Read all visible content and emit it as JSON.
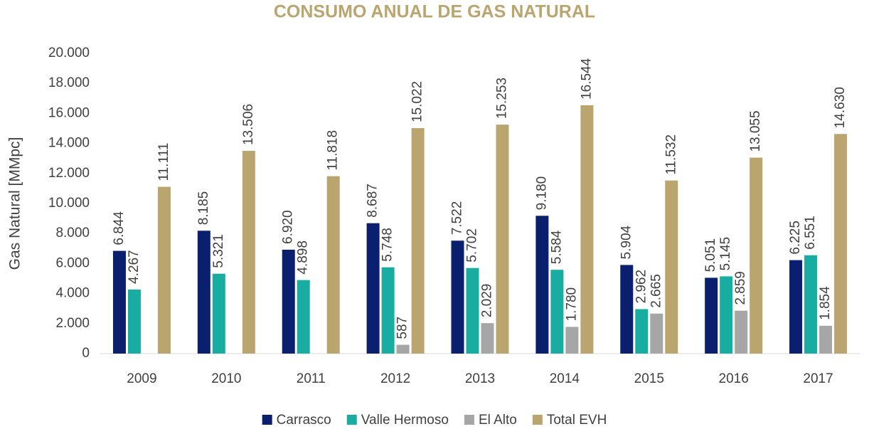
{
  "chart_data": {
    "type": "bar",
    "title": "CONSUMO ANUAL DE GAS NATURAL",
    "y_label": "Gas Natural [MMpc]",
    "categories": [
      "2009",
      "2010",
      "2011",
      "2012",
      "2013",
      "2014",
      "2015",
      "2016",
      "2017"
    ],
    "series": [
      {
        "name": "Carrasco",
        "color": "#0b1f6f",
        "values": [
          6844,
          8185,
          6920,
          8687,
          7522,
          9180,
          5904,
          5051,
          6225
        ],
        "value_labels": [
          "6.844",
          "8.185",
          "6.920",
          "8.687",
          "7.522",
          "9.180",
          "5.904",
          "5.051",
          "6.225"
        ]
      },
      {
        "name": "Valle Hermoso",
        "color": "#19ada1",
        "values": [
          4267,
          5321,
          4898,
          5748,
          5702,
          5584,
          2962,
          5145,
          6551
        ],
        "value_labels": [
          "4.267",
          "5.321",
          "4.898",
          "5.748",
          "5.702",
          "5.584",
          "2.962",
          "5.145",
          "6.551"
        ]
      },
      {
        "name": "El Alto",
        "color": "#a6a6a6",
        "values": [
          null,
          null,
          null,
          587,
          2029,
          1780,
          2665,
          2859,
          1854
        ],
        "value_labels": [
          null,
          null,
          null,
          "587",
          "2.029",
          "1.780",
          "2.665",
          "2.859",
          "1.854"
        ]
      },
      {
        "name": "Total EVH",
        "color": "#b9a56d",
        "values": [
          11111,
          13506,
          11818,
          15022,
          15253,
          16544,
          11532,
          13055,
          14630
        ],
        "value_labels": [
          "11.111",
          "13.506",
          "11.818",
          "15.022",
          "15.253",
          "16.544",
          "11.532",
          "13.055",
          "14.630"
        ]
      }
    ],
    "ylim": [
      0,
      20000
    ],
    "yticks": [
      0,
      {
        "value": 2000,
        "label": "2.000"
      },
      {
        "value": 4000,
        "label": "4.000"
      },
      {
        "value": 6000,
        "label": "6.000"
      },
      {
        "value": 8000,
        "label": "8.000"
      },
      {
        "value": 10000,
        "label": "10.000"
      },
      {
        "value": 12000,
        "label": "12.000"
      },
      {
        "value": 14000,
        "label": "14.000"
      },
      {
        "value": 16000,
        "label": "16.000"
      },
      {
        "value": 18000,
        "label": "18.000"
      },
      {
        "value": 20000,
        "label": "20.000"
      }
    ],
    "grid": false,
    "legend": "bottom"
  }
}
